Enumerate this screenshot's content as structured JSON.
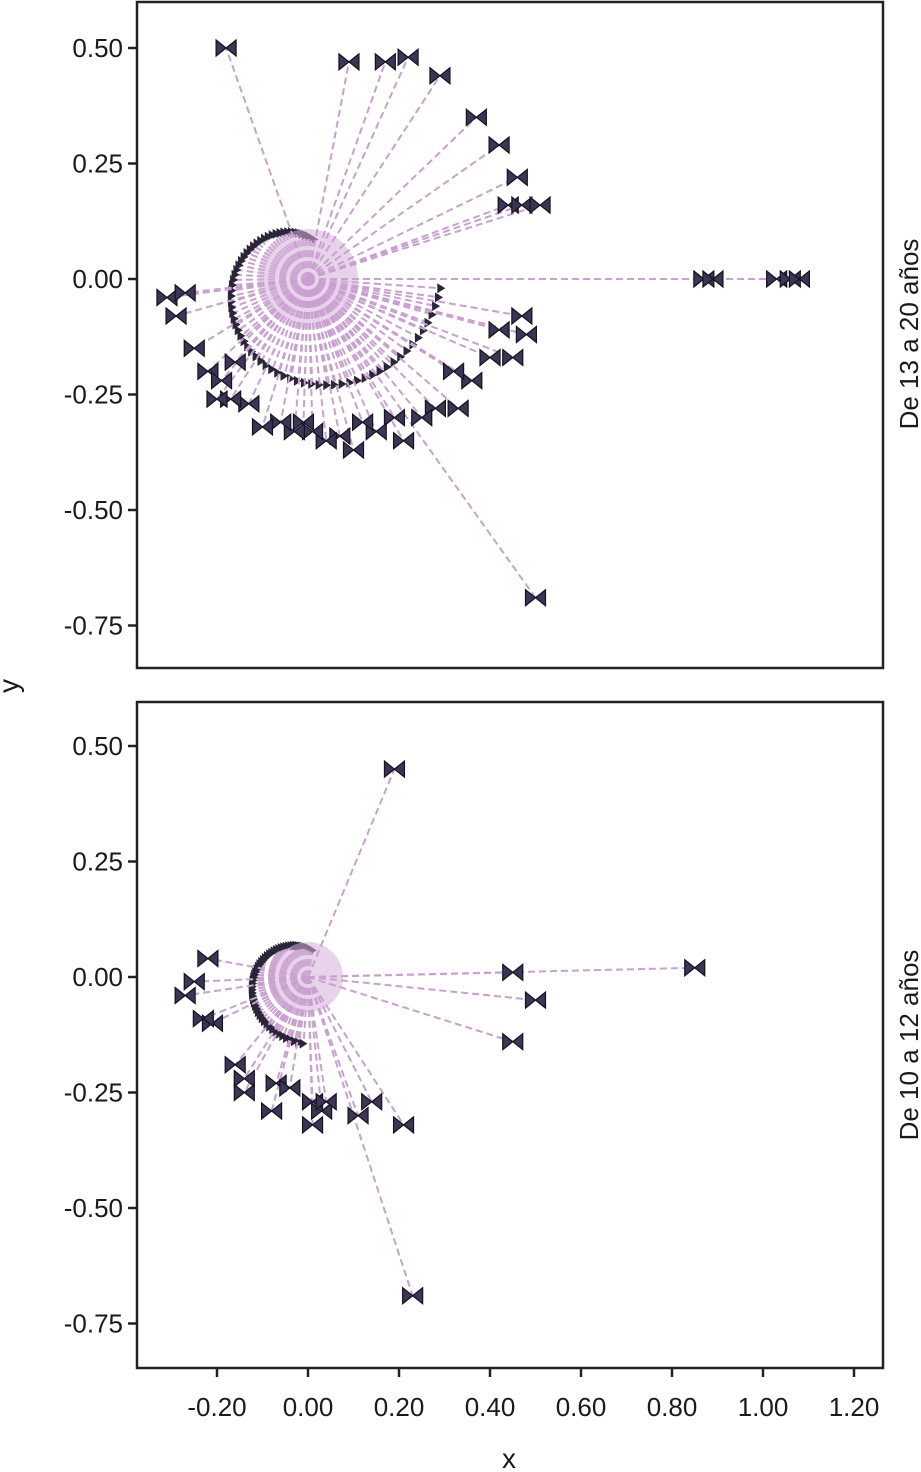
{
  "chart_data": {
    "type": "scatter",
    "xlabel": "x",
    "ylabel": "y",
    "x_ticks": [
      "-0.20",
      "0.00",
      "0.20",
      "0.40",
      "0.60",
      "0.80",
      "1.00",
      "1.20"
    ],
    "y_ticks": [
      "0.50",
      "0.25",
      "0.00",
      "-0.25",
      "-0.50",
      "-0.75"
    ],
    "xlim": [
      -0.37,
      1.27
    ],
    "ylim": [
      -0.85,
      0.6
    ],
    "colors": {
      "ray": "#c9a0cf",
      "marker": "#3b3556",
      "frame": "#222222"
    },
    "panels": [
      {
        "facet_label": "De 13 a 20 años",
        "series": [
          {
            "points": [
              [
                -0.18,
                0.5
              ],
              [
                0.09,
                0.47
              ],
              [
                0.17,
                0.47
              ],
              [
                0.22,
                0.48
              ],
              [
                0.29,
                0.44
              ],
              [
                0.37,
                0.35
              ],
              [
                0.42,
                0.29
              ],
              [
                0.46,
                0.22
              ],
              [
                0.44,
                0.16
              ],
              [
                0.47,
                0.16
              ],
              [
                0.51,
                0.16
              ],
              [
                0.87,
                0.0
              ],
              [
                0.89,
                0.0
              ],
              [
                1.03,
                0.0
              ],
              [
                1.06,
                0.0
              ],
              [
                1.08,
                0.0
              ],
              [
                0.47,
                -0.08
              ],
              [
                0.48,
                -0.12
              ],
              [
                0.42,
                -0.11
              ],
              [
                0.45,
                -0.17
              ],
              [
                0.4,
                -0.17
              ],
              [
                0.36,
                -0.22
              ],
              [
                0.32,
                -0.2
              ],
              [
                0.33,
                -0.28
              ],
              [
                0.28,
                -0.28
              ],
              [
                0.25,
                -0.3
              ],
              [
                0.21,
                -0.35
              ],
              [
                0.19,
                -0.3
              ],
              [
                0.15,
                -0.33
              ],
              [
                0.12,
                -0.31
              ],
              [
                0.1,
                -0.37
              ],
              [
                0.07,
                -0.34
              ],
              [
                0.04,
                -0.35
              ],
              [
                0.01,
                -0.33
              ],
              [
                -0.01,
                -0.31
              ],
              [
                -0.03,
                -0.33
              ],
              [
                -0.06,
                -0.31
              ],
              [
                -0.1,
                -0.32
              ],
              [
                -0.13,
                -0.27
              ],
              [
                -0.17,
                -0.26
              ],
              [
                -0.2,
                -0.26
              ],
              [
                -0.22,
                -0.2
              ],
              [
                -0.19,
                -0.22
              ],
              [
                -0.16,
                -0.18
              ],
              [
                -0.25,
                -0.15
              ],
              [
                -0.29,
                -0.08
              ],
              [
                -0.31,
                -0.04
              ],
              [
                -0.27,
                -0.03
              ],
              [
                0.5,
                -0.69
              ]
            ]
          }
        ]
      },
      {
        "facet_label": "De 10 a 12 años",
        "series": [
          {
            "points": [
              [
                0.19,
                0.45
              ],
              [
                0.85,
                0.02
              ],
              [
                0.45,
                0.01
              ],
              [
                0.5,
                -0.05
              ],
              [
                0.45,
                -0.14
              ],
              [
                -0.21,
                -0.1
              ],
              [
                -0.23,
                -0.09
              ],
              [
                -0.16,
                -0.19
              ],
              [
                -0.14,
                -0.22
              ],
              [
                -0.14,
                -0.25
              ],
              [
                -0.07,
                -0.23
              ],
              [
                -0.04,
                -0.24
              ],
              [
                -0.08,
                -0.29
              ],
              [
                0.01,
                -0.27
              ],
              [
                0.03,
                -0.29
              ],
              [
                0.01,
                -0.32
              ],
              [
                0.04,
                -0.27
              ],
              [
                0.11,
                -0.3
              ],
              [
                0.14,
                -0.27
              ],
              [
                0.21,
                -0.32
              ],
              [
                0.23,
                -0.69
              ],
              [
                -0.27,
                -0.04
              ],
              [
                -0.25,
                -0.01
              ],
              [
                -0.22,
                0.04
              ]
            ]
          }
        ]
      }
    ]
  }
}
